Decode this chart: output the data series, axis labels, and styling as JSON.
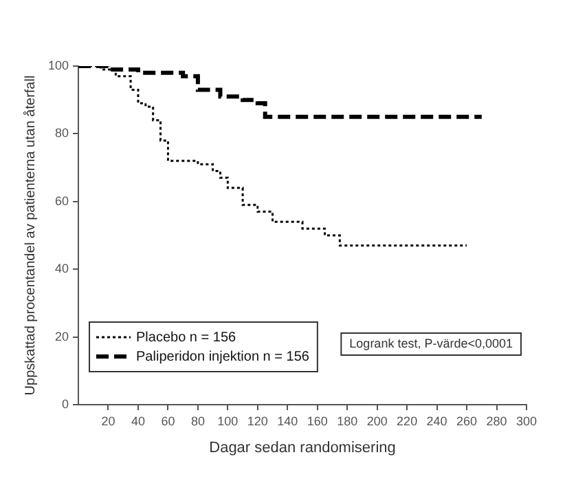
{
  "chart_data": {
    "type": "step",
    "xlabel": "Dagar sedan randomisering",
    "ylabel": "Uppskattad procentandel av patienterna utan återfall",
    "xlim": [
      0,
      300
    ],
    "xticks": [
      20,
      40,
      60,
      80,
      100,
      120,
      140,
      160,
      180,
      200,
      220,
      240,
      260,
      280,
      300
    ],
    "ylim": [
      0,
      100
    ],
    "yticks": [
      0,
      20,
      40,
      60,
      80,
      100
    ],
    "grid": false,
    "legend": "bottom left",
    "marker": "none",
    "annotations": [
      "Logrank test, P-värde<0,0001"
    ],
    "series": [
      {
        "name": "Placebo n = 156",
        "color": "#000000",
        "line_style": "dotted",
        "x": [
          0,
          15,
          25,
          35,
          40,
          45,
          50,
          55,
          60,
          80,
          90,
          95,
          100,
          110,
          120,
          130,
          150,
          165,
          175,
          260
        ],
        "values": [
          100,
          99,
          97,
          93,
          89,
          88,
          84,
          78,
          72,
          71,
          69,
          67,
          64,
          59,
          57,
          54,
          52,
          50,
          47,
          47
        ]
      },
      {
        "name": "Paliperidon injektion n = 156",
        "color": "#000000",
        "line_style": "dashed",
        "x": [
          0,
          20,
          40,
          70,
          80,
          95,
          110,
          120,
          125,
          270
        ],
        "values": [
          100,
          99,
          98,
          97,
          93,
          91,
          90,
          89,
          85,
          85
        ]
      }
    ]
  }
}
